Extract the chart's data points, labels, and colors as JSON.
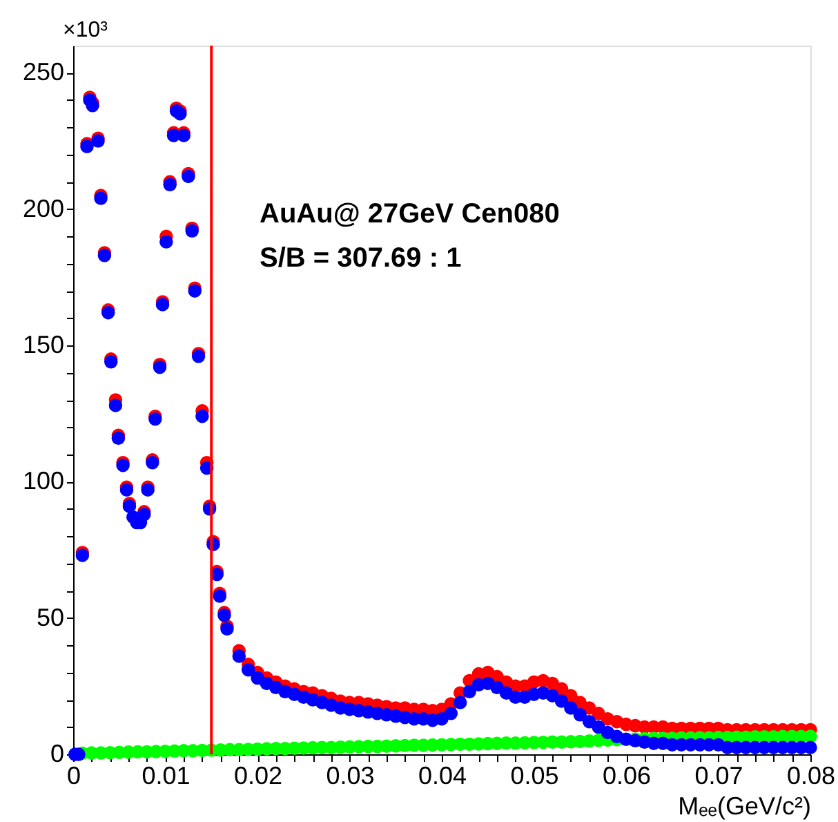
{
  "chart_data": {
    "type": "scatter",
    "xlabel": "Mₑₑ(GeV/c²)",
    "ylabel": "×10³",
    "annotations": [
      "AuAu@ 27GeV Cen080",
      "S/B = 307.69 : 1"
    ],
    "xlim": [
      0,
      0.08
    ],
    "ylim": [
      0,
      260
    ],
    "xticks": [
      0,
      {
        "value": 0.002,
        "label": null
      },
      {
        "value": 0.004,
        "label": null
      },
      {
        "value": 0.006,
        "label": null
      },
      {
        "value": 0.008,
        "label": null
      },
      0.01,
      {
        "value": 0.012,
        "label": null
      },
      {
        "value": 0.014,
        "label": null
      },
      {
        "value": 0.016,
        "label": null
      },
      {
        "value": 0.018,
        "label": null
      },
      0.02,
      {
        "value": 0.022,
        "label": null
      },
      {
        "value": 0.024,
        "label": null
      },
      {
        "value": 0.026,
        "label": null
      },
      {
        "value": 0.028,
        "label": null
      },
      0.03,
      {
        "value": 0.032,
        "label": null
      },
      {
        "value": 0.034,
        "label": null
      },
      {
        "value": 0.036,
        "label": null
      },
      {
        "value": 0.038,
        "label": null
      },
      0.04,
      {
        "value": 0.042,
        "label": null
      },
      {
        "value": 0.044,
        "label": null
      },
      {
        "value": 0.046,
        "label": null
      },
      {
        "value": 0.048,
        "label": null
      },
      0.05,
      {
        "value": 0.052,
        "label": null
      },
      {
        "value": 0.054,
        "label": null
      },
      {
        "value": 0.056,
        "label": null
      },
      {
        "value": 0.058,
        "label": null
      },
      0.06,
      {
        "value": 0.062,
        "label": null
      },
      {
        "value": 0.064,
        "label": null
      },
      {
        "value": 0.066,
        "label": null
      },
      {
        "value": 0.068,
        "label": null
      },
      0.07,
      {
        "value": 0.072,
        "label": null
      },
      {
        "value": 0.074,
        "label": null
      },
      {
        "value": 0.076,
        "label": null
      },
      {
        "value": 0.078,
        "label": null
      },
      0.08
    ],
    "yticks": [
      0,
      {
        "value": 10,
        "label": null
      },
      {
        "value": 20,
        "label": null
      },
      {
        "value": 30,
        "label": null
      },
      {
        "value": 40,
        "label": null
      },
      50,
      {
        "value": 60,
        "label": null
      },
      {
        "value": 70,
        "label": null
      },
      {
        "value": 80,
        "label": null
      },
      {
        "value": 90,
        "label": null
      },
      100,
      {
        "value": 110,
        "label": null
      },
      {
        "value": 120,
        "label": null
      },
      {
        "value": 130,
        "label": null
      },
      {
        "value": 140,
        "label": null
      },
      150,
      {
        "value": 160,
        "label": null
      },
      {
        "value": 170,
        "label": null
      },
      {
        "value": 180,
        "label": null
      },
      {
        "value": 190,
        "label": null
      },
      200,
      {
        "value": 210,
        "label": null
      },
      {
        "value": 220,
        "label": null
      },
      {
        "value": 230,
        "label": null
      },
      {
        "value": 240,
        "label": null
      },
      250
    ],
    "grid": false,
    "legend": false,
    "marker": "circle",
    "ref_lines": [
      {
        "axis": "x",
        "value": 0.015,
        "color": "#ff0000"
      }
    ],
    "series": [
      {
        "color": "#ff0000",
        "x": [
          0.001,
          0.0015,
          0.0018,
          0.0021,
          0.0027,
          0.003,
          0.0034,
          0.0038,
          0.0041,
          0.0046,
          0.0049,
          0.0054,
          0.0058,
          0.0061,
          0.0077,
          0.0081,
          0.0086,
          0.0089,
          0.0094,
          0.0097,
          0.0101,
          0.0105,
          0.0109,
          0.0112,
          0.0116,
          0.012,
          0.0125,
          0.0129,
          0.0132,
          0.0136,
          0.014,
          0.0145,
          0.0148,
          0.0152,
          0.0156,
          0.0159,
          0.0164,
          0.0167,
          0.018,
          0.019,
          0.02,
          0.021,
          0.022,
          0.023,
          0.024,
          0.025,
          0.026,
          0.027,
          0.028,
          0.029,
          0.03,
          0.031,
          0.032,
          0.033,
          0.034,
          0.035,
          0.036,
          0.037,
          0.038,
          0.039,
          0.04,
          0.041,
          0.042,
          0.043,
          0.044,
          0.045,
          0.046,
          0.047,
          0.048,
          0.049,
          0.05,
          0.051,
          0.052,
          0.053,
          0.054,
          0.055,
          0.056,
          0.057,
          0.058,
          0.059,
          0.06,
          0.061,
          0.062,
          0.063,
          0.064,
          0.065,
          0.066,
          0.067,
          0.068,
          0.069,
          0.07,
          0.071,
          0.072,
          0.073,
          0.074,
          0.075,
          0.076,
          0.077,
          0.078,
          0.079,
          0.08
        ],
        "values": [
          74,
          224,
          241,
          239,
          226,
          205,
          184,
          163,
          145,
          130,
          117,
          107,
          98,
          92,
          89,
          98,
          108,
          124,
          143,
          166,
          190,
          210,
          228,
          237,
          236,
          228,
          213,
          193,
          171,
          147,
          126,
          107,
          91,
          78,
          67,
          59,
          52,
          47,
          38,
          33,
          30,
          28,
          26.5,
          25,
          24,
          23,
          22.5,
          21.5,
          20.5,
          19.5,
          19,
          19,
          18.5,
          18,
          17.5,
          17,
          17,
          16.5,
          16.5,
          16,
          16.5,
          18.5,
          22.5,
          27,
          29.5,
          30,
          28.5,
          26.5,
          25,
          25,
          26.5,
          27,
          26,
          24,
          21.5,
          19,
          17,
          15,
          13,
          12,
          11,
          10.5,
          10,
          10,
          10,
          9.5,
          9.5,
          9.5,
          9.5,
          9.5,
          9.5,
          9,
          9,
          9,
          9,
          9,
          9,
          9,
          9,
          9,
          9
        ]
      },
      {
        "color": "#00ff00",
        "x": [
          0.001,
          0.002,
          0.003,
          0.004,
          0.005,
          0.006,
          0.007,
          0.008,
          0.009,
          0.01,
          0.011,
          0.012,
          0.013,
          0.014,
          0.015,
          0.016,
          0.017,
          0.018,
          0.019,
          0.02,
          0.021,
          0.022,
          0.023,
          0.024,
          0.025,
          0.026,
          0.027,
          0.028,
          0.029,
          0.03,
          0.031,
          0.032,
          0.033,
          0.034,
          0.035,
          0.036,
          0.037,
          0.038,
          0.039,
          0.04,
          0.041,
          0.042,
          0.043,
          0.044,
          0.045,
          0.046,
          0.047,
          0.048,
          0.049,
          0.05,
          0.051,
          0.052,
          0.053,
          0.054,
          0.055,
          0.056,
          0.057,
          0.058,
          0.059,
          0.06,
          0.061,
          0.062,
          0.063,
          0.064,
          0.065,
          0.066,
          0.067,
          0.068,
          0.069,
          0.07,
          0.071,
          0.072,
          0.073,
          0.074,
          0.075,
          0.076,
          0.077,
          0.078,
          0.079,
          0.08
        ],
        "values": [
          0.4,
          0.5,
          0.5,
          0.6,
          0.7,
          0.8,
          0.9,
          0.9,
          1.0,
          1.1,
          1.2,
          1.3,
          1.3,
          1.4,
          1.5,
          1.6,
          1.7,
          1.7,
          1.8,
          1.9,
          2.0,
          2.1,
          2.1,
          2.2,
          2.3,
          2.4,
          2.5,
          2.5,
          2.6,
          2.7,
          2.8,
          2.9,
          2.9,
          3.0,
          3.1,
          3.2,
          3.3,
          3.3,
          3.4,
          3.5,
          3.6,
          3.7,
          3.7,
          3.8,
          3.9,
          4.0,
          4.1,
          4.1,
          4.2,
          4.3,
          4.4,
          4.5,
          4.5,
          4.6,
          4.7,
          4.9,
          5.1,
          5.2,
          5.4,
          null,
          5.6,
          5.7,
          5.8,
          5.8,
          5.9,
          6.0,
          6.0,
          6.1,
          6.1,
          6.2,
          6.2,
          6.3,
          6.3,
          6.4,
          6.4,
          6.4,
          6.5,
          6.5,
          6.5,
          6.6
        ]
      },
      {
        "color": "#0000ff",
        "x": [
          0.0002,
          0.0006,
          0.001,
          0.0015,
          0.0018,
          0.0021,
          0.0027,
          0.003,
          0.0034,
          0.0038,
          0.0041,
          0.0046,
          0.0049,
          0.0054,
          0.0058,
          0.0061,
          0.0065,
          0.0069,
          0.0073,
          0.0077,
          0.0081,
          0.0086,
          0.0089,
          0.0094,
          0.0097,
          0.0101,
          0.0105,
          0.0109,
          0.0112,
          0.0116,
          0.012,
          0.0125,
          0.0129,
          0.0132,
          0.0136,
          0.014,
          0.0145,
          0.0148,
          0.0152,
          0.0156,
          0.0159,
          0.0164,
          0.0167,
          0.018,
          0.019,
          0.02,
          0.021,
          0.022,
          0.023,
          0.024,
          0.025,
          0.026,
          0.027,
          0.028,
          0.029,
          0.03,
          0.031,
          0.032,
          0.033,
          0.034,
          0.035,
          0.036,
          0.037,
          0.038,
          0.039,
          0.04,
          0.041,
          0.042,
          0.043,
          0.044,
          0.045,
          0.046,
          0.047,
          0.048,
          0.049,
          0.05,
          0.051,
          0.052,
          0.053,
          0.054,
          0.055,
          0.056,
          0.057,
          0.058,
          0.059,
          0.06,
          0.061,
          0.062,
          0.063,
          0.064,
          0.065,
          0.066,
          0.067,
          0.068,
          0.069,
          0.07,
          0.071,
          0.072,
          0.073,
          0.074,
          0.075,
          0.076,
          0.077,
          0.078,
          0.079,
          0.08
        ],
        "values": [
          0,
          0,
          73,
          223,
          240,
          238,
          225,
          204,
          183,
          162,
          144,
          128,
          116,
          106,
          97,
          91,
          87,
          85,
          85,
          88,
          97,
          107,
          123,
          142,
          165,
          188,
          209,
          227,
          236,
          235,
          227,
          212,
          192,
          170,
          146,
          124,
          105,
          90,
          77,
          66,
          58,
          51,
          46,
          36,
          31,
          28,
          26,
          24.5,
          23,
          22,
          21,
          20,
          19,
          18,
          17,
          16.5,
          16,
          15.5,
          15,
          14.5,
          14,
          13.5,
          13,
          13,
          12.5,
          13,
          15,
          19,
          23,
          25.5,
          26,
          24.5,
          22.5,
          21,
          21,
          22,
          22.5,
          21.5,
          19.5,
          17,
          14.5,
          12,
          10,
          8,
          6.5,
          5.5,
          5,
          4.5,
          4,
          4,
          3.5,
          3.5,
          3.5,
          3.5,
          3.5,
          3.5,
          2.5,
          2.5,
          2.5,
          2.5,
          2.5,
          2.5,
          2.5,
          2.5,
          2.5,
          2.5
        ]
      }
    ]
  }
}
